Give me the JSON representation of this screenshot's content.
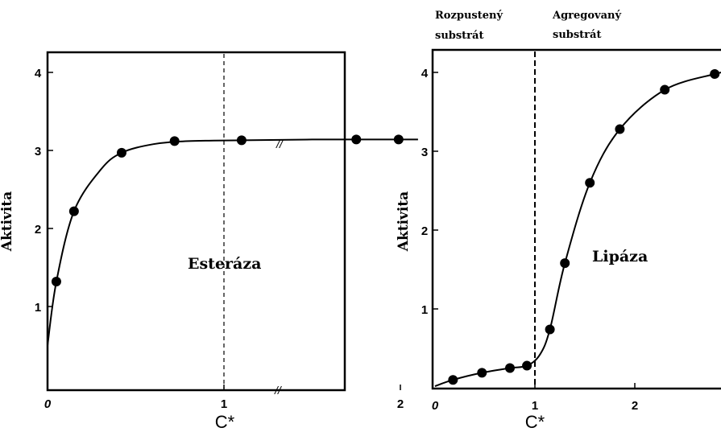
{
  "chart_data": [
    {
      "type": "scatter",
      "title": "Esteráza",
      "xlabel": "C*",
      "ylabel": "Aktivita",
      "xlim": [
        0,
        2.2
      ],
      "ylim": [
        0,
        4.2
      ],
      "x_ticks": [
        "0",
        "1",
        "2"
      ],
      "y_ticks": [
        "1",
        "2",
        "3",
        "4"
      ],
      "axis_break_symbol": "//",
      "vline_x": 1,
      "points": [
        {
          "x": 0.05,
          "y": 1.32
        },
        {
          "x": 0.15,
          "y": 2.22
        },
        {
          "x": 0.42,
          "y": 2.97
        },
        {
          "x": 0.72,
          "y": 3.12
        },
        {
          "x": 1.1,
          "y": 3.13
        },
        {
          "x": 1.75,
          "y": 3.14
        },
        {
          "x": 1.99,
          "y": 3.14
        }
      ],
      "curve": [
        {
          "x": 0.0,
          "y": 0.5
        },
        {
          "x": 0.05,
          "y": 1.32
        },
        {
          "x": 0.15,
          "y": 2.22
        },
        {
          "x": 0.3,
          "y": 2.75
        },
        {
          "x": 0.42,
          "y": 2.97
        },
        {
          "x": 0.6,
          "y": 3.08
        },
        {
          "x": 0.8,
          "y": 3.12
        },
        {
          "x": 1.1,
          "y": 3.13
        },
        {
          "x": 1.5,
          "y": 3.14
        },
        {
          "x": 2.1,
          "y": 3.14
        }
      ]
    },
    {
      "type": "scatter",
      "title": "Lipáza",
      "xlabel": "C*",
      "ylabel": "Aktivita",
      "xlim": [
        0,
        2.9
      ],
      "ylim": [
        0,
        4.2
      ],
      "x_ticks": [
        "0",
        "1",
        "2"
      ],
      "y_ticks": [
        "1",
        "2",
        "3",
        "4"
      ],
      "vline_x": 1,
      "region_labels": [
        "Rozpustený substrát",
        "Agregovaný substrát"
      ],
      "points": [
        {
          "x": 0.18,
          "y": 0.1
        },
        {
          "x": 0.47,
          "y": 0.19
        },
        {
          "x": 0.75,
          "y": 0.25
        },
        {
          "x": 0.92,
          "y": 0.28
        },
        {
          "x": 1.15,
          "y": 0.74
        },
        {
          "x": 1.3,
          "y": 1.58
        },
        {
          "x": 1.55,
          "y": 2.6
        },
        {
          "x": 1.85,
          "y": 3.28
        },
        {
          "x": 2.3,
          "y": 3.78
        },
        {
          "x": 2.8,
          "y": 3.98
        }
      ],
      "curve": [
        {
          "x": 0.0,
          "y": 0.02
        },
        {
          "x": 0.18,
          "y": 0.1
        },
        {
          "x": 0.47,
          "y": 0.19
        },
        {
          "x": 0.75,
          "y": 0.25
        },
        {
          "x": 0.92,
          "y": 0.28
        },
        {
          "x": 1.05,
          "y": 0.42
        },
        {
          "x": 1.15,
          "y": 0.74
        },
        {
          "x": 1.3,
          "y": 1.58
        },
        {
          "x": 1.55,
          "y": 2.6
        },
        {
          "x": 1.85,
          "y": 3.28
        },
        {
          "x": 2.3,
          "y": 3.78
        },
        {
          "x": 2.8,
          "y": 3.98
        },
        {
          "x": 2.9,
          "y": 4.0
        }
      ]
    }
  ]
}
